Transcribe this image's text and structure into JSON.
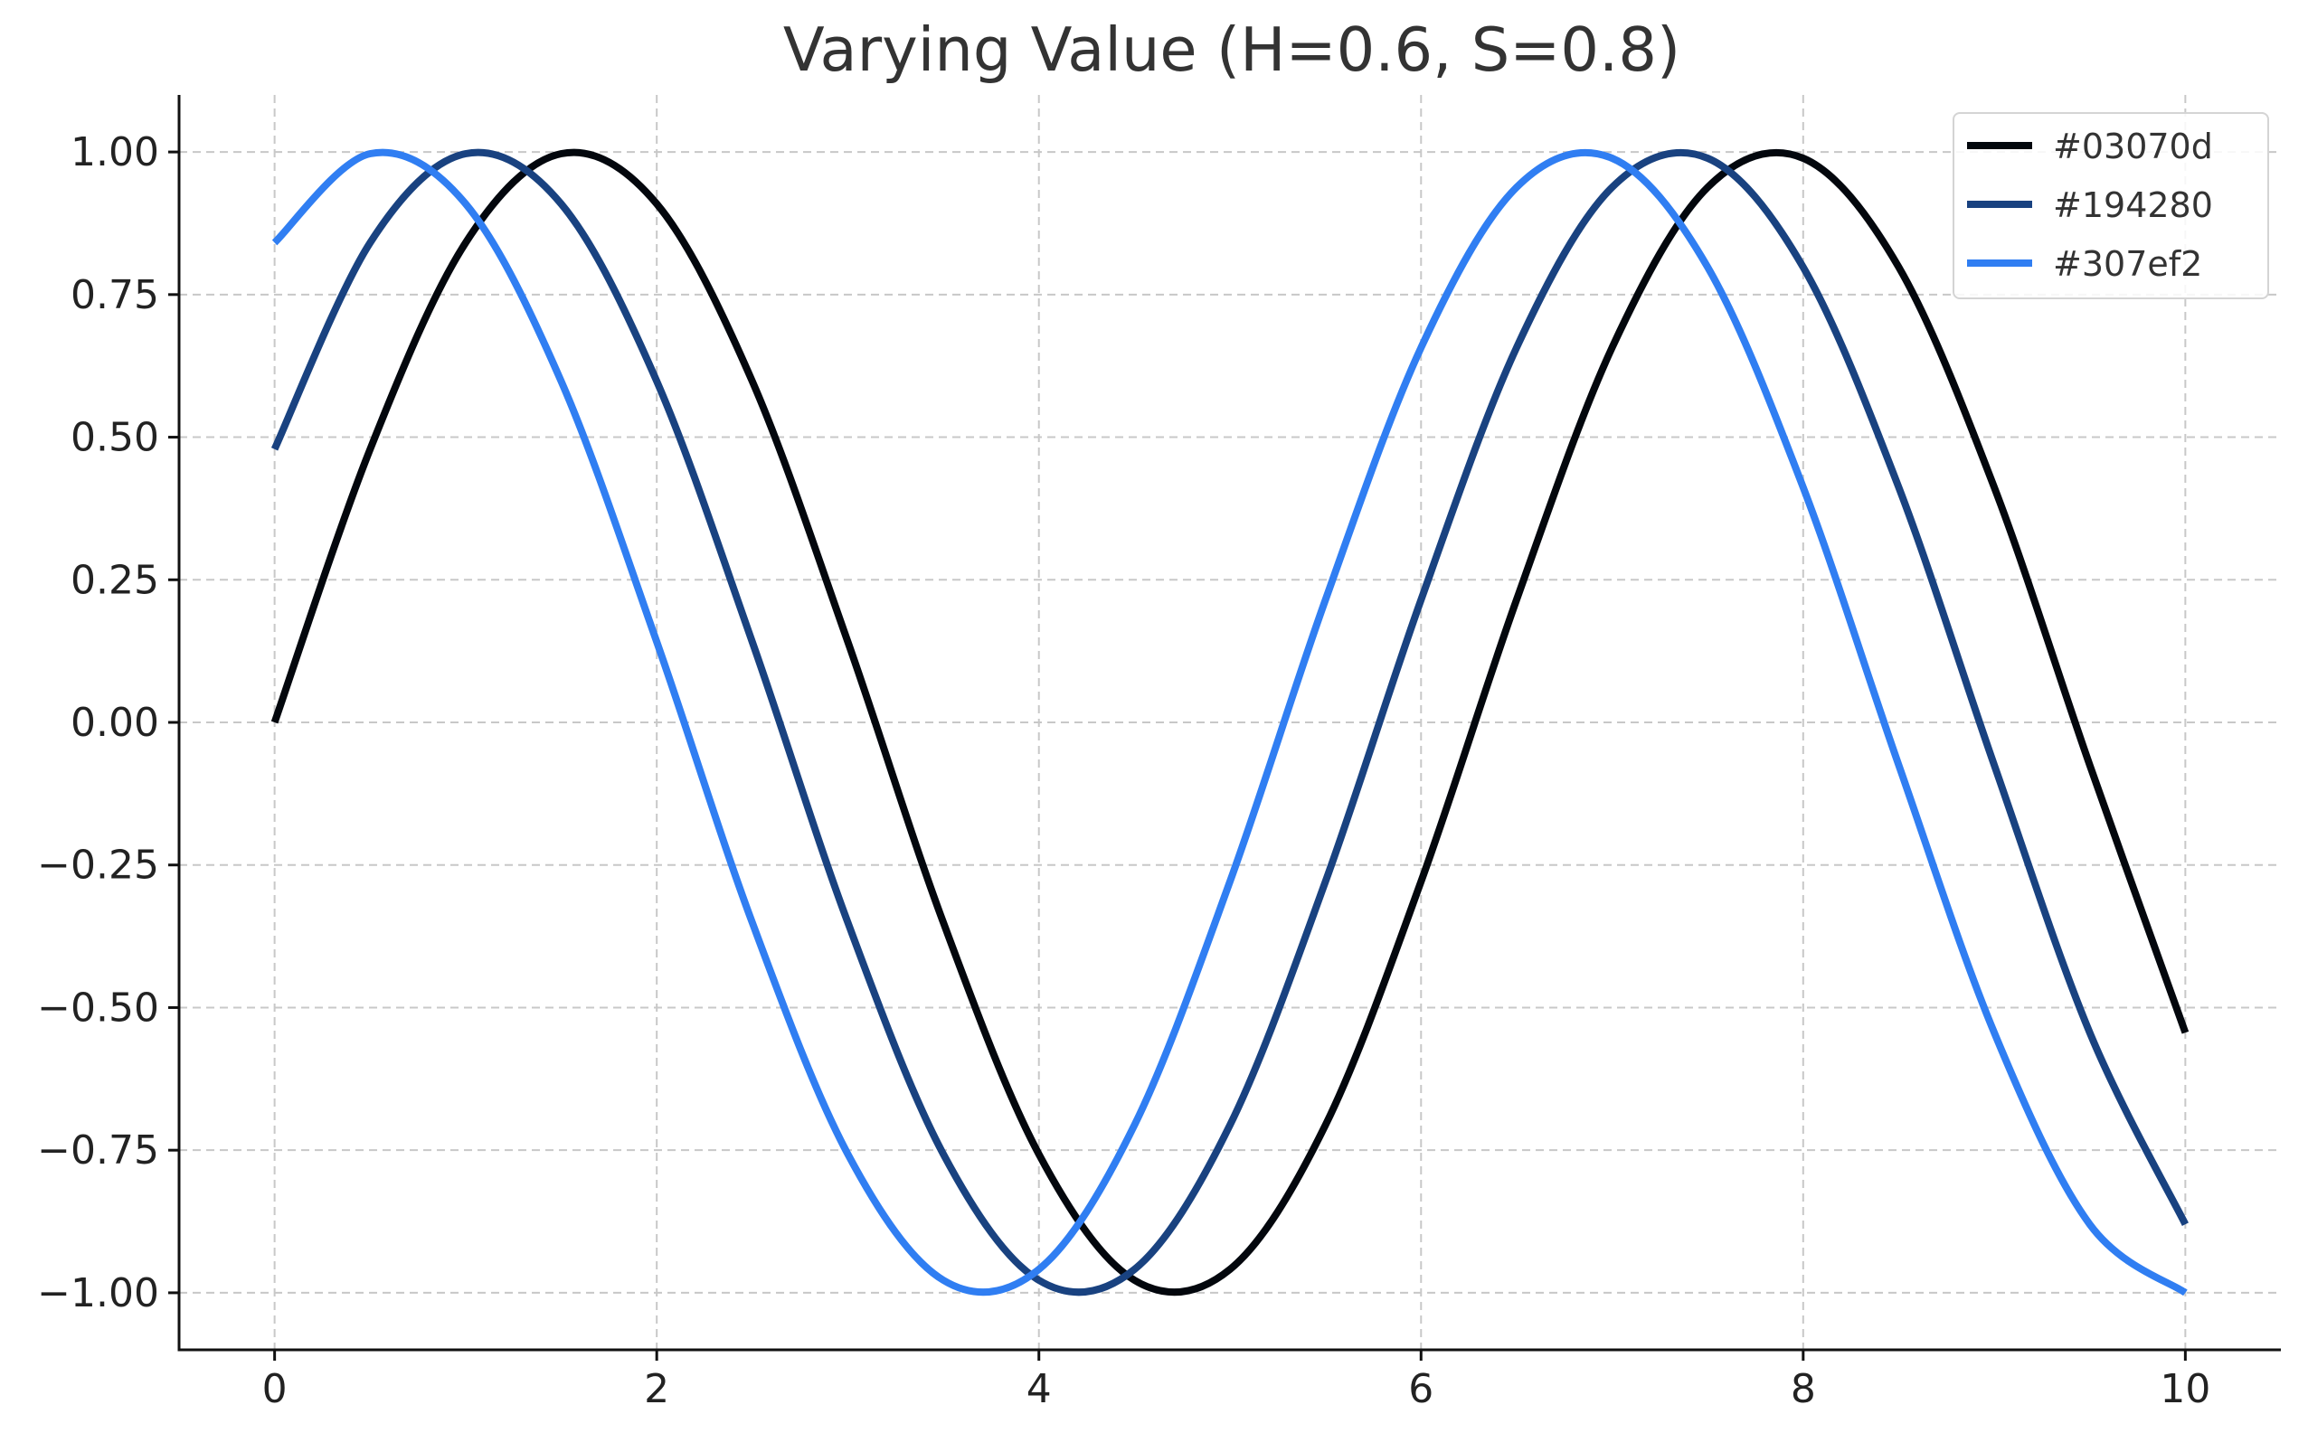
{
  "chart_data": {
    "type": "line",
    "title": "Varying Value (H=0.6, S=0.8)",
    "xlabel": "",
    "ylabel": "",
    "xlim": [
      -0.5,
      10.5
    ],
    "ylim": [
      -1.1,
      1.1
    ],
    "grid": true,
    "legend_position": "top-right",
    "x_ticks": [
      0,
      2,
      4,
      6,
      8,
      10
    ],
    "x_tick_labels": [
      "0",
      "2",
      "4",
      "6",
      "8",
      "10"
    ],
    "y_ticks": [
      1.0,
      0.75,
      0.5,
      0.25,
      0.0,
      -0.25,
      -0.5,
      -0.75,
      -1.0
    ],
    "y_tick_labels": [
      "1.00",
      "0.75",
      "0.50",
      "0.25",
      "0.00",
      "−0.25",
      "−0.50",
      "−0.75",
      "−1.00"
    ],
    "x": [
      0,
      0.5,
      1,
      1.5,
      2,
      2.5,
      3,
      3.5,
      4,
      4.5,
      5,
      5.5,
      6,
      6.5,
      7,
      7.5,
      8,
      8.5,
      9,
      9.5,
      10
    ],
    "series": [
      {
        "name": "#03070d",
        "color": "#03070d",
        "values": [
          0.0,
          0.479,
          0.841,
          0.997,
          0.909,
          0.598,
          0.141,
          -0.351,
          -0.757,
          -0.978,
          -0.959,
          -0.706,
          -0.279,
          0.215,
          0.657,
          0.938,
          0.989,
          0.798,
          0.412,
          -0.075,
          -0.544
        ]
      },
      {
        "name": "#194280",
        "color": "#194280",
        "values": [
          0.479,
          0.841,
          0.997,
          0.909,
          0.598,
          0.141,
          -0.351,
          -0.757,
          -0.978,
          -0.959,
          -0.706,
          -0.279,
          0.215,
          0.657,
          0.938,
          0.989,
          0.798,
          0.412,
          -0.075,
          -0.544,
          -0.88
        ]
      },
      {
        "name": "#307ef2",
        "color": "#307ef2",
        "values": [
          0.841,
          0.997,
          0.909,
          0.598,
          0.141,
          -0.351,
          -0.757,
          -0.978,
          -0.959,
          -0.706,
          -0.279,
          0.215,
          0.657,
          0.938,
          0.989,
          0.798,
          0.412,
          -0.075,
          -0.544,
          -0.88,
          -1.0
        ]
      }
    ]
  }
}
